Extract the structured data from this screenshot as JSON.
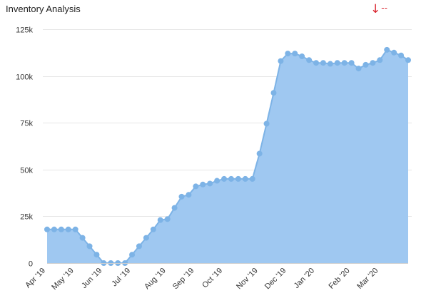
{
  "header": {
    "title": "Inventory Analysis",
    "trend_icon": "down-arrow-icon",
    "trend_value": "--",
    "trend_color": "#d9232e"
  },
  "colors": {
    "area_fill": "#9fc8f1",
    "line": "#7db3e6",
    "point": "#7db3e6",
    "grid": "#e6e6e6"
  },
  "chart_data": {
    "type": "area",
    "title": "Inventory Analysis",
    "xlabel": "",
    "ylabel": "",
    "ylim": [
      0,
      125000
    ],
    "grid": true,
    "legend": "none",
    "y_ticks": [
      {
        "value": 0,
        "label": "0"
      },
      {
        "value": 25000,
        "label": "25k"
      },
      {
        "value": 50000,
        "label": "50k"
      },
      {
        "value": 75000,
        "label": "75k"
      },
      {
        "value": 100000,
        "label": "100k"
      },
      {
        "value": 125000,
        "label": "125k"
      }
    ],
    "x_ticks": [
      {
        "index": 0,
        "label": "Apr '19"
      },
      {
        "index": 4,
        "label": "May '19"
      },
      {
        "index": 8,
        "label": "Jun '19"
      },
      {
        "index": 12,
        "label": "Jul '19"
      },
      {
        "index": 17,
        "label": "Aug '19"
      },
      {
        "index": 21,
        "label": "Sep '19"
      },
      {
        "index": 25,
        "label": "Oct '19"
      },
      {
        "index": 30,
        "label": "Nov '19"
      },
      {
        "index": 34,
        "label": "Dec '19"
      },
      {
        "index": 38,
        "label": "Jan '20"
      },
      {
        "index": 43,
        "label": "Feb '20"
      },
      {
        "index": 47,
        "label": "Mar '20"
      }
    ],
    "series": [
      {
        "values": [
          18000,
          18000,
          18000,
          18000,
          18000,
          13500,
          9000,
          4500,
          0,
          0,
          0,
          0,
          4500,
          9000,
          13500,
          18000,
          23000,
          23500,
          29500,
          35500,
          36500,
          41000,
          42000,
          42500,
          44000,
          45000,
          45000,
          45000,
          45000,
          45000,
          58500,
          74500,
          91000,
          108000,
          112000,
          112000,
          110500,
          108500,
          107000,
          107000,
          106500,
          107000,
          107000,
          107000,
          104000,
          106000,
          107000,
          108500,
          114000,
          112500,
          111000,
          108500
        ]
      }
    ]
  }
}
